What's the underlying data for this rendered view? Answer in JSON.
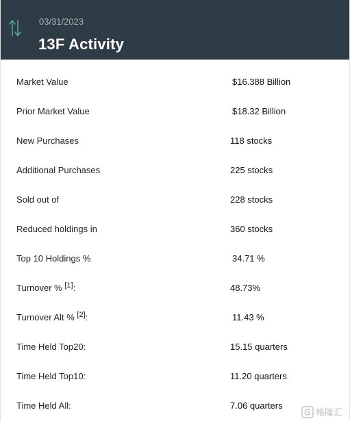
{
  "header": {
    "date": "03/31/2023",
    "title": "13F Activity",
    "icon": "up-down-arrows-icon",
    "bg_color": "#2e3d45",
    "accent_color": "#4fa892"
  },
  "rows": [
    {
      "label": "Market Value",
      "value": "$16.388 Billion"
    },
    {
      "label": "Prior Market Value",
      "value": "$18.32 Billion"
    },
    {
      "label": "New Purchases",
      "value": "118 stocks"
    },
    {
      "label": "Additional Purchases",
      "value": "225 stocks"
    },
    {
      "label": "Sold out of",
      "value": "228 stocks"
    },
    {
      "label": "Reduced holdings in",
      "value": "360 stocks"
    },
    {
      "label": "Top 10 Holdings %",
      "value": "34.71 %"
    },
    {
      "label": "Turnover %",
      "footnote": "[1]",
      "suffix": ":",
      "value": "48.73%"
    },
    {
      "label": "Turnover Alt %",
      "footnote": "[2]",
      "suffix": ":",
      "value": "11.43 %"
    },
    {
      "label": "Time Held Top20:",
      "value": "15.15 quarters"
    },
    {
      "label": "Time Held Top10:",
      "value": "11.20 quarters"
    },
    {
      "label": "Time Held All:",
      "value": "7.06 quarters"
    }
  ],
  "watermark": {
    "text": "格隆汇",
    "icon": "g-logo-icon"
  }
}
